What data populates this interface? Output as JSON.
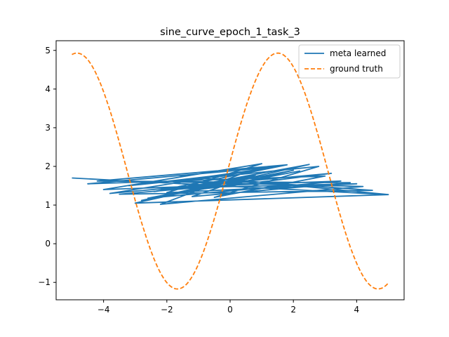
{
  "chart_data": {
    "type": "line",
    "title": "sine_curve_epoch_1_task_3",
    "xlabel": "",
    "ylabel": "",
    "xlim": [
      -5.5,
      5.5
    ],
    "ylim": [
      -1.45,
      5.25
    ],
    "x_ticks": [
      -4,
      -2,
      0,
      2,
      4
    ],
    "y_ticks": [
      -1,
      0,
      1,
      2,
      3,
      4,
      5
    ],
    "legend_position": "top-right",
    "grid": false,
    "series": [
      {
        "name": "meta learned",
        "color": "#1f77b4",
        "style": "solid",
        "x": [
          -5.0,
          5.0,
          -3.0,
          2.5,
          -1.5,
          4.0,
          -2.0,
          1.0,
          -4.0,
          3.5,
          -2.6,
          2.0,
          0.0,
          -3.5,
          4.5,
          -1.0,
          1.5,
          -4.5,
          3.0,
          -0.5,
          2.8,
          -3.2,
          0.5,
          -2.2,
          4.2,
          -1.8,
          1.2,
          -3.8,
          3.2,
          -0.8,
          2.2,
          -2.8,
          0.8,
          -1.2,
          3.8,
          -4.2,
          1.8,
          -2.4,
          0.2,
          5.0,
          -5.0
        ],
        "y": [
          1.7,
          1.27,
          1.05,
          2.05,
          1.45,
          1.55,
          1.32,
          2.07,
          1.4,
          1.62,
          1.18,
          1.9,
          1.52,
          1.28,
          1.38,
          1.7,
          1.99,
          1.55,
          1.75,
          1.2,
          2.0,
          1.5,
          1.85,
          1.02,
          1.48,
          1.6,
          1.95,
          1.3,
          1.82,
          1.42,
          1.88,
          1.12,
          1.78,
          1.22,
          1.58,
          1.62,
          2.04,
          1.35,
          1.65,
          1.27,
          1.7
        ]
      },
      {
        "name": "ground truth",
        "color": "#ff7f0e",
        "style": "dashed",
        "amplitude": 3.05,
        "frequency": 0.99,
        "phase": 0.08,
        "offset": 1.88,
        "x_range": [
          -5.0,
          5.0
        ]
      }
    ]
  }
}
